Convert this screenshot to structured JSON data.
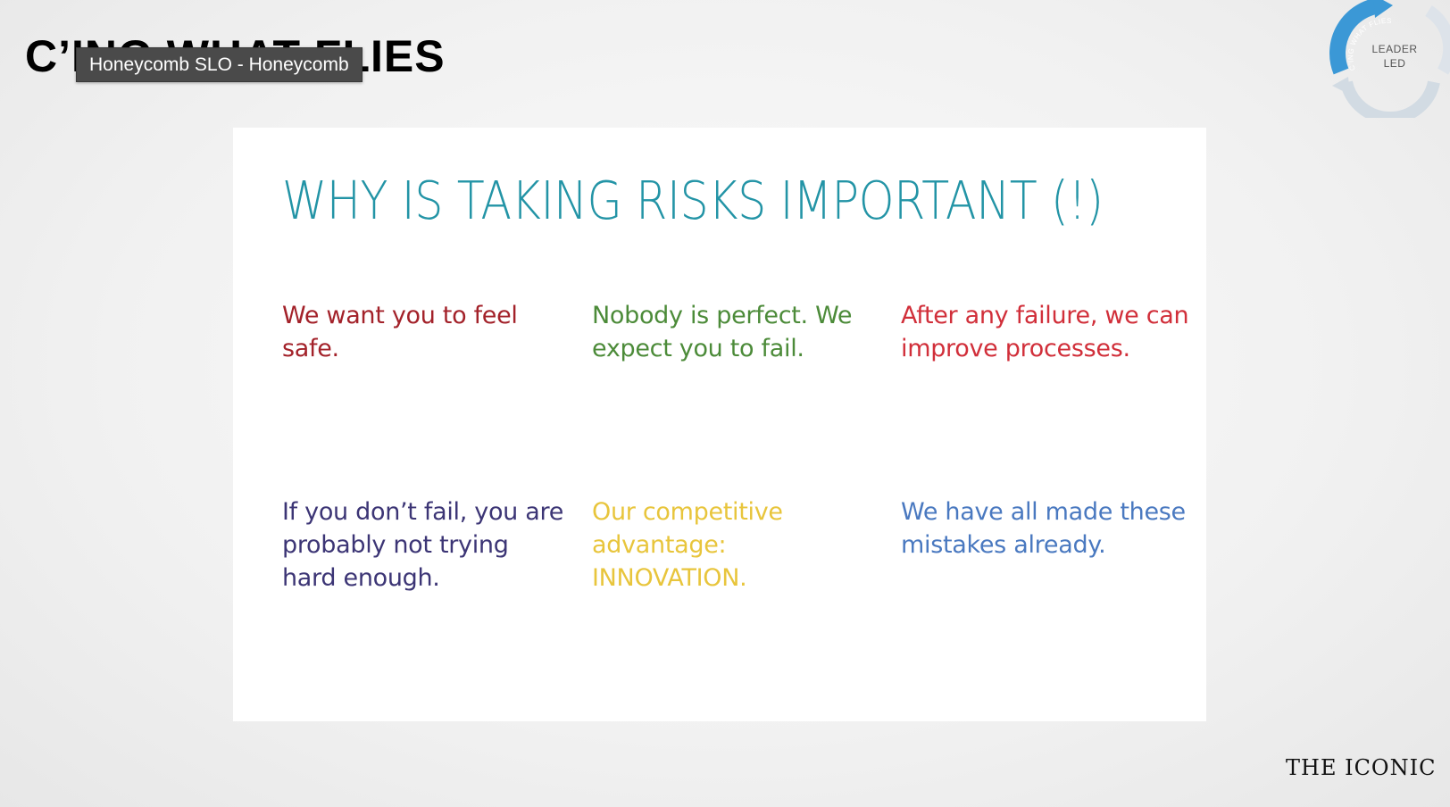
{
  "header": {
    "brand_title": "C’ING WHAT FLIES"
  },
  "tooltip": {
    "text": "Honeycomb SLO - Honeycomb"
  },
  "logo": {
    "center_text_line1": "LEADER",
    "center_text_line2": "LED",
    "arc_text": "C’ING WHAT FLIES",
    "arc_color": "#3b98d6"
  },
  "slide": {
    "title": "WHY IS TAKING RISKS IMPORTANT (!)",
    "points": [
      {
        "text": "We want you to feel safe.",
        "color": "#a3222a"
      },
      {
        "text": "Nobody is perfect. We expect you to fail.",
        "color": "#4c8b39"
      },
      {
        "text": "After any failure, we can improve processes.",
        "color": "#d12f3a"
      },
      {
        "text": "If you don’t fail, you are probably not trying hard enough.",
        "color": "#3c3575"
      },
      {
        "text": "Our competitive advantage: INNOVATION.",
        "color": "#e8c53c"
      },
      {
        "text": "We have all made these mistakes already.",
        "color": "#4a79c0"
      }
    ]
  },
  "footer": {
    "brand": "THE ICONIC"
  }
}
